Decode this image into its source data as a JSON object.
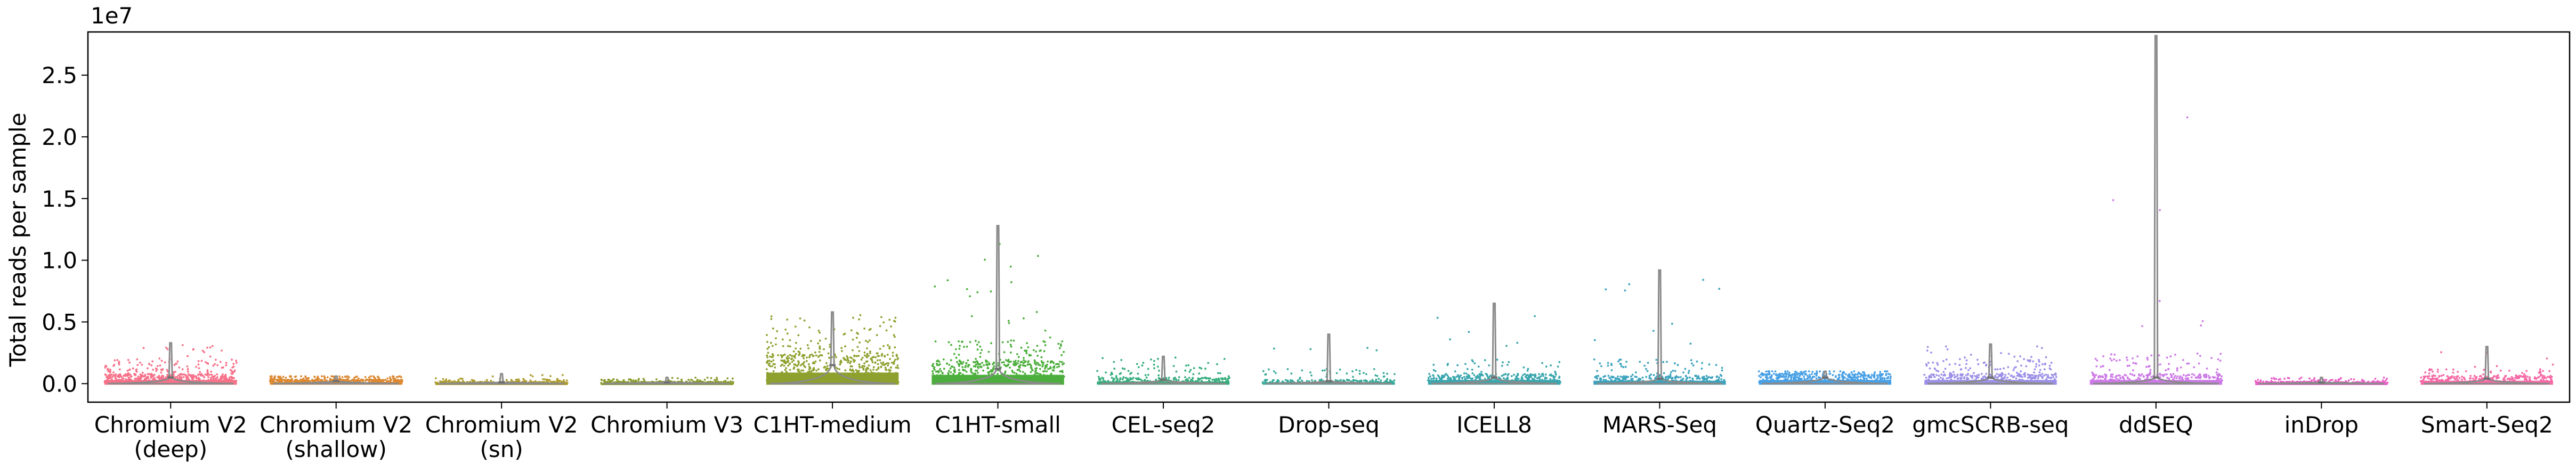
{
  "chart_data": {
    "type": "violin-strip",
    "ylabel": "Total reads per sample",
    "y_offset_label": "1e7",
    "ylim": [
      -0.15,
      2.85
    ],
    "yticks": [
      "0.0",
      "0.5",
      "1.0",
      "1.5",
      "2.0",
      "2.5"
    ],
    "ytick_values": [
      0.0,
      0.5,
      1.0,
      1.5,
      2.0,
      2.5
    ],
    "grid": false,
    "legend": "none",
    "categories": [
      {
        "label_lines": [
          "Chromium V2",
          "(deep)"
        ],
        "color": "#f77189",
        "median": 0.05,
        "max": 0.33,
        "spread": 0.2,
        "density": 1.0
      },
      {
        "label_lines": [
          "Chromium V2",
          "(shallow)"
        ],
        "color": "#dc8932",
        "median": 0.02,
        "max": 0.06,
        "spread": 0.06,
        "density": 1.0
      },
      {
        "label_lines": [
          "Chromium V2",
          "(sn)"
        ],
        "color": "#ae9d31",
        "median": 0.01,
        "max": 0.08,
        "spread": 0.04,
        "density": 0.6
      },
      {
        "label_lines": [
          "Chromium V3"
        ],
        "color": "#8a9a2c",
        "median": 0.01,
        "max": 0.05,
        "spread": 0.04,
        "density": 0.6
      },
      {
        "label_lines": [
          "C1HT-medium"
        ],
        "color": "#8ea12e",
        "median": 0.15,
        "max": 0.58,
        "spread": 0.45,
        "density": 1.0
      },
      {
        "label_lines": [
          "C1HT-small"
        ],
        "color": "#4cae3c",
        "median": 0.12,
        "max": 1.28,
        "spread": 0.35,
        "density": 1.0
      },
      {
        "label_lines": [
          "CEL-seq2"
        ],
        "color": "#36ad7d",
        "median": 0.03,
        "max": 0.22,
        "spread": 0.15,
        "density": 0.5
      },
      {
        "label_lines": [
          "Drop-seq"
        ],
        "color": "#38aa99",
        "median": 0.02,
        "max": 0.4,
        "spread": 0.12,
        "density": 0.4
      },
      {
        "label_lines": [
          "ICELL8"
        ],
        "color": "#3aa6ad",
        "median": 0.05,
        "max": 0.65,
        "spread": 0.2,
        "density": 0.6
      },
      {
        "label_lines": [
          "MARS-Seq"
        ],
        "color": "#3ca3bd",
        "median": 0.04,
        "max": 0.92,
        "spread": 0.2,
        "density": 0.6
      },
      {
        "label_lines": [
          "Quartz-Seq2"
        ],
        "color": "#48a0e5",
        "median": 0.05,
        "max": 0.1,
        "spread": 0.1,
        "density": 0.8
      },
      {
        "label_lines": [
          "gmcSCRB-seq"
        ],
        "color": "#9b8fe8",
        "median": 0.05,
        "max": 0.32,
        "spread": 0.2,
        "density": 0.8
      },
      {
        "label_lines": [
          "ddSEQ"
        ],
        "color": "#cc79e6",
        "median": 0.05,
        "max": 2.82,
        "spread": 0.25,
        "density": 0.6
      },
      {
        "label_lines": [
          "inDrop"
        ],
        "color": "#e95fc7",
        "median": 0.01,
        "max": 0.05,
        "spread": 0.04,
        "density": 0.5
      },
      {
        "label_lines": [
          "Smart-Seq2"
        ],
        "color": "#f56aa6",
        "median": 0.04,
        "max": 0.3,
        "spread": 0.12,
        "density": 0.6
      }
    ]
  }
}
